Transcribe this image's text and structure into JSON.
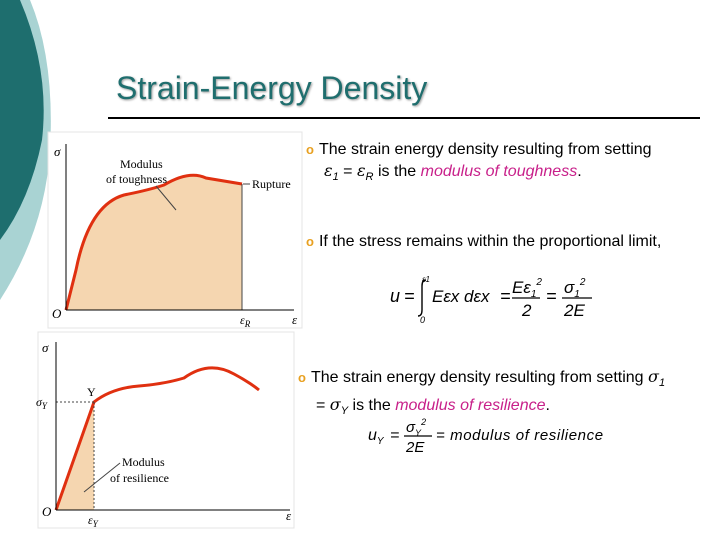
{
  "slide": {
    "title": "Strain-Energy Density"
  },
  "colors": {
    "teal_dark": "#1e6e6e",
    "teal_light": "#a9d3d3",
    "bullet": "#e8a020",
    "highlight": "#c8208a",
    "curve": "#e03010",
    "fill": "#f5d6b0"
  },
  "bullets": [
    {
      "marker": "o",
      "lead": "The strain energy density resulting from setting",
      "sym1": "ε",
      "sub1": "1",
      "eq": " = ",
      "sym2": "ε",
      "sub2": "R",
      "mid": " is the ",
      "highlight": "modulus of toughness",
      "end": "."
    },
    {
      "marker": "o",
      "text": "If the stress remains within the proportional limit,"
    },
    {
      "marker": "o",
      "lead": "The strain energy density resulting from setting",
      "sym1": "σ",
      "sub1": "1",
      "eq": "= ",
      "sym2": "σ",
      "sub2": "Y",
      "mid": " is the ",
      "highlight": "modulus of resilience",
      "end": "."
    }
  ],
  "equation1": {
    "u": "u",
    "equals": "=",
    "upper_limit": "ε1",
    "lower_limit": "0",
    "integrand": "Eεx dεx",
    "frac1_num": "Eε",
    "frac1_num_sub": "1",
    "frac1_num_sup": "2",
    "frac1_den": "2",
    "frac2_num": "σ",
    "frac2_num_sub": "1",
    "frac2_num_sup": "2",
    "frac2_den": "2E"
  },
  "equation2": {
    "lhs": "u",
    "lhs_sub": "Y",
    "equals": "=",
    "num": "σ",
    "num_sub": "Y",
    "num_sup": "2",
    "den": "2E",
    "rhs": "= modulus of resilience"
  },
  "figure_top": {
    "y_axis": "σ",
    "x_axis": "ε",
    "origin": "O",
    "x_tick": "ε",
    "x_tick_sub": "R",
    "curve_label": "Modulus of toughness",
    "curve_label_lines": [
      "Modulus",
      "of toughness"
    ],
    "point_label": "Rupture"
  },
  "figure_bottom": {
    "y_axis": "σ",
    "x_axis": "ε",
    "origin": "O",
    "y_tick": "σ",
    "y_tick_sub": "Y",
    "x_tick": "ε",
    "x_tick_sub": "Y",
    "point_label": "Y",
    "area_label_lines": [
      "Modulus",
      "of resilience"
    ]
  }
}
